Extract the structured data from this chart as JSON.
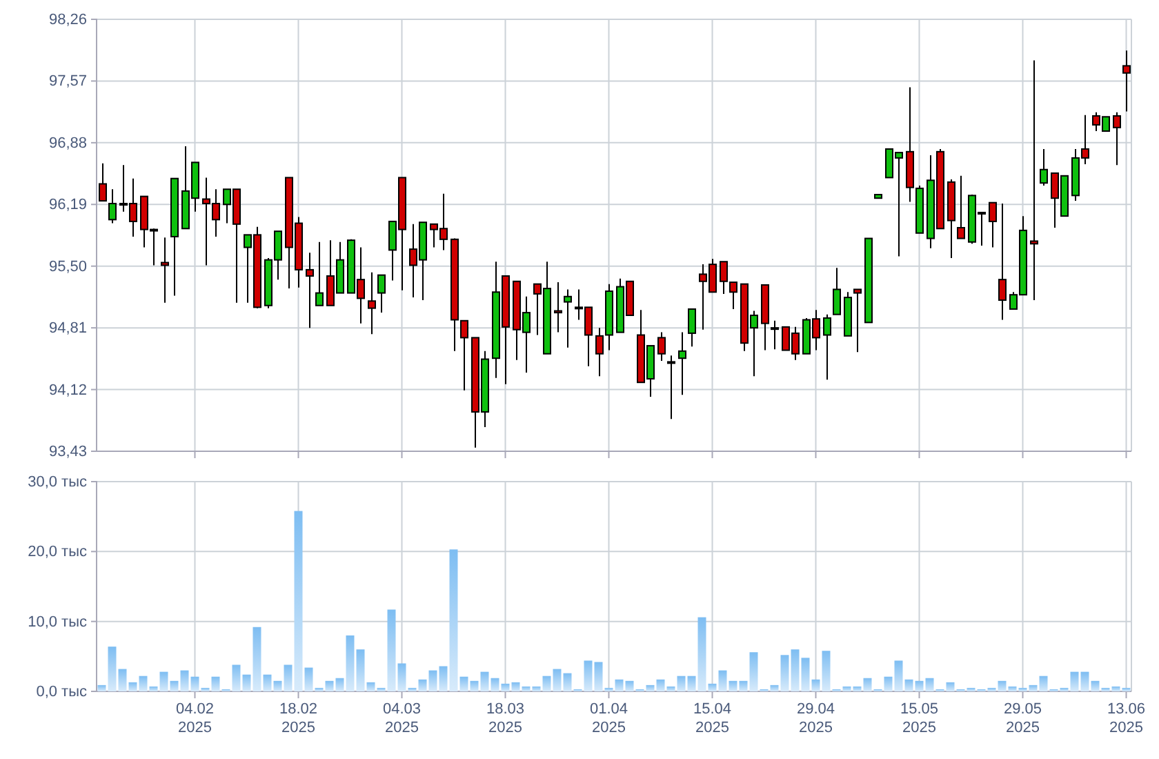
{
  "chart_data": [
    {
      "type": "candlestick",
      "tick_labels": "y",
      "grid": true,
      "categories": [
        null,
        null,
        null,
        null,
        null,
        null,
        null,
        null,
        null,
        null,
        null,
        null,
        null,
        null,
        null,
        null,
        null,
        null,
        null,
        null,
        null,
        null,
        null,
        null,
        null,
        null,
        null,
        null,
        null,
        null,
        null,
        null,
        null,
        null,
        null,
        null,
        null,
        null,
        null,
        null,
        null,
        null,
        null,
        null,
        null,
        null,
        null,
        null,
        null,
        null,
        null,
        null,
        null,
        null,
        null,
        null,
        null,
        null,
        null,
        null,
        null,
        null,
        null,
        null,
        null,
        null,
        null,
        null,
        null,
        null,
        null,
        null,
        null,
        null,
        null,
        null,
        null,
        null,
        null,
        null,
        null,
        null,
        null,
        null,
        null,
        null,
        null,
        null,
        null,
        null,
        null,
        null,
        null,
        null,
        null,
        null,
        null,
        null,
        null,
        null
      ],
      "ylim": [
        93.43,
        98.26
      ],
      "yticks": [
        {
          "value": 93.43,
          "label": "93,43"
        },
        {
          "value": 94.12,
          "label": "94,12"
        },
        {
          "value": 94.81,
          "label": "94,81"
        },
        {
          "value": 95.5,
          "label": "95,50"
        },
        {
          "value": 96.19,
          "label": "96,19"
        },
        {
          "value": 96.88,
          "label": "96,88"
        },
        {
          "value": 97.57,
          "label": "97,57"
        },
        {
          "value": 98.26,
          "label": "98,26"
        }
      ],
      "ohlc": [
        [
          96.42,
          96.65,
          96.23,
          96.23
        ],
        [
          96.02,
          96.36,
          95.98,
          96.2
        ],
        [
          96.2,
          96.63,
          96.11,
          96.2
        ],
        [
          96.2,
          96.48,
          95.83,
          96.0
        ],
        [
          96.28,
          96.28,
          95.71,
          95.91
        ],
        [
          95.91,
          95.92,
          95.51,
          95.91
        ],
        [
          95.54,
          95.82,
          95.09,
          95.51
        ],
        [
          95.83,
          96.48,
          95.17,
          96.48
        ],
        [
          95.92,
          96.84,
          95.92,
          96.34
        ],
        [
          96.26,
          96.66,
          96.11,
          96.66
        ],
        [
          96.25,
          96.49,
          95.51,
          96.2
        ],
        [
          96.2,
          96.36,
          95.83,
          96.02
        ],
        [
          96.19,
          96.36,
          95.98,
          96.36
        ],
        [
          96.36,
          96.36,
          95.09,
          95.97
        ],
        [
          95.71,
          95.85,
          95.09,
          95.85
        ],
        [
          95.85,
          95.94,
          95.03,
          95.04
        ],
        [
          95.06,
          95.59,
          95.03,
          95.57
        ],
        [
          95.57,
          95.89,
          95.35,
          95.89
        ],
        [
          96.49,
          96.49,
          95.25,
          95.71
        ],
        [
          95.98,
          96.05,
          95.26,
          95.46
        ],
        [
          95.46,
          95.65,
          94.81,
          95.39
        ],
        [
          95.06,
          95.77,
          95.06,
          95.2
        ],
        [
          95.39,
          95.79,
          95.06,
          95.06
        ],
        [
          95.2,
          95.77,
          95.2,
          95.57
        ],
        [
          95.2,
          95.8,
          95.2,
          95.79
        ],
        [
          95.35,
          95.71,
          94.86,
          95.14
        ],
        [
          95.11,
          95.43,
          94.74,
          95.03
        ],
        [
          95.2,
          95.4,
          94.98,
          95.4
        ],
        [
          95.68,
          96.0,
          95.34,
          96.0
        ],
        [
          96.49,
          96.49,
          95.23,
          95.91
        ],
        [
          95.69,
          95.97,
          95.15,
          95.51
        ],
        [
          95.57,
          95.99,
          95.12,
          95.99
        ],
        [
          95.97,
          95.97,
          95.71,
          95.91
        ],
        [
          95.92,
          96.31,
          95.68,
          95.8
        ],
        [
          95.8,
          95.81,
          94.55,
          94.9
        ],
        [
          94.89,
          94.89,
          94.11,
          94.7
        ],
        [
          94.7,
          94.7,
          93.47,
          93.87
        ],
        [
          93.87,
          94.55,
          93.7,
          94.46
        ],
        [
          94.47,
          95.55,
          94.25,
          95.21
        ],
        [
          95.39,
          95.39,
          94.18,
          94.82
        ],
        [
          95.33,
          95.33,
          94.45,
          94.79
        ],
        [
          94.76,
          95.16,
          94.31,
          94.98
        ],
        [
          95.3,
          95.3,
          94.73,
          95.19
        ],
        [
          94.52,
          95.55,
          94.52,
          95.25
        ],
        [
          95.0,
          95.32,
          94.76,
          94.98
        ],
        [
          95.1,
          95.24,
          94.59,
          95.16
        ],
        [
          95.04,
          95.24,
          94.9,
          95.03
        ],
        [
          95.04,
          95.04,
          94.38,
          94.73
        ],
        [
          94.72,
          94.81,
          94.27,
          94.52
        ],
        [
          94.73,
          95.3,
          94.56,
          95.22
        ],
        [
          94.76,
          95.36,
          94.76,
          95.27
        ],
        [
          95.33,
          95.33,
          94.95,
          94.95
        ],
        [
          94.73,
          95.01,
          94.2,
          94.2
        ],
        [
          94.24,
          94.61,
          94.04,
          94.61
        ],
        [
          94.7,
          94.76,
          94.44,
          94.52
        ],
        [
          94.43,
          94.5,
          93.79,
          94.43
        ],
        [
          94.47,
          94.76,
          94.06,
          94.55
        ],
        [
          94.75,
          95.02,
          94.6,
          95.02
        ],
        [
          95.41,
          95.52,
          94.79,
          95.33
        ],
        [
          95.52,
          95.58,
          95.21,
          95.21
        ],
        [
          95.55,
          95.55,
          95.19,
          95.33
        ],
        [
          95.32,
          95.32,
          95.02,
          95.21
        ],
        [
          95.3,
          95.3,
          94.55,
          94.64
        ],
        [
          94.81,
          95.0,
          94.27,
          94.95
        ],
        [
          95.29,
          95.29,
          94.56,
          94.86
        ],
        [
          94.81,
          94.89,
          94.57,
          94.81
        ],
        [
          94.82,
          94.82,
          94.56,
          94.56
        ],
        [
          94.75,
          94.82,
          94.45,
          94.52
        ],
        [
          94.52,
          94.92,
          94.52,
          94.9
        ],
        [
          94.91,
          95.01,
          94.56,
          94.7
        ],
        [
          94.73,
          94.96,
          94.23,
          94.92
        ],
        [
          94.96,
          95.48,
          94.96,
          95.24
        ],
        [
          94.72,
          95.21,
          94.72,
          95.15
        ],
        [
          95.24,
          95.24,
          94.54,
          95.2
        ],
        [
          94.87,
          95.81,
          94.87,
          95.81
        ],
        [
          96.26,
          96.3,
          96.26,
          96.3
        ],
        [
          96.49,
          96.81,
          96.49,
          96.81
        ],
        [
          96.71,
          96.77,
          95.61,
          96.77
        ],
        [
          96.78,
          97.5,
          96.22,
          96.38
        ],
        [
          95.87,
          96.4,
          95.87,
          96.37
        ],
        [
          95.81,
          96.74,
          95.7,
          96.46
        ],
        [
          96.78,
          96.81,
          95.92,
          95.92
        ],
        [
          96.44,
          96.47,
          95.59,
          96.01
        ],
        [
          95.93,
          96.51,
          95.81,
          95.81
        ],
        [
          95.77,
          96.3,
          95.75,
          96.29
        ],
        [
          96.1,
          96.1,
          95.73,
          96.1
        ],
        [
          96.21,
          96.21,
          95.71,
          96.0
        ],
        [
          95.35,
          96.2,
          94.9,
          95.12
        ],
        [
          95.02,
          95.21,
          95.02,
          95.18
        ],
        [
          95.18,
          96.06,
          95.18,
          95.9
        ],
        [
          95.78,
          97.8,
          95.12,
          95.75
        ],
        [
          96.43,
          96.81,
          96.4,
          96.58
        ],
        [
          96.54,
          96.54,
          95.93,
          96.26
        ],
        [
          96.06,
          96.51,
          96.06,
          96.51
        ],
        [
          96.29,
          96.81,
          96.23,
          96.71
        ],
        [
          96.81,
          97.19,
          96.64,
          96.71
        ],
        [
          97.18,
          97.22,
          97.01,
          97.08
        ],
        [
          97.01,
          97.17,
          97.01,
          97.17
        ],
        [
          97.18,
          97.22,
          96.63,
          97.05
        ],
        [
          97.74,
          97.91,
          97.23,
          97.66
        ]
      ]
    },
    {
      "type": "bar",
      "grid": true,
      "color": "#7dbdf2",
      "categories": [
        null,
        null,
        null,
        null,
        null,
        null,
        null,
        null,
        null,
        "04.02 2025",
        null,
        null,
        null,
        null,
        null,
        null,
        null,
        null,
        null,
        "18.02 2025",
        null,
        null,
        null,
        null,
        null,
        null,
        null,
        null,
        null,
        "04.03 2025",
        null,
        null,
        null,
        null,
        null,
        null,
        null,
        null,
        null,
        "18.03 2025",
        null,
        null,
        null,
        null,
        null,
        null,
        null,
        null,
        null,
        "01.04 2025",
        null,
        null,
        null,
        null,
        null,
        null,
        null,
        null,
        null,
        "15.04 2025",
        null,
        null,
        null,
        null,
        null,
        null,
        null,
        null,
        null,
        "29.04 2025",
        null,
        null,
        null,
        null,
        null,
        null,
        null,
        null,
        null,
        "15.05 2025",
        null,
        null,
        null,
        null,
        null,
        null,
        null,
        null,
        null,
        "29.05 2025",
        null,
        null,
        null,
        null,
        null,
        null,
        null,
        null,
        null,
        "13.06 2025"
      ],
      "ylim": [
        0,
        30
      ],
      "yticks": [
        {
          "value": 0,
          "label": "0,0 тыс"
        },
        {
          "value": 10,
          "label": "10,0 тыс"
        },
        {
          "value": 20,
          "label": "20,0 тыс"
        },
        {
          "value": 30,
          "label": "30,0 тыс"
        }
      ],
      "values": [
        0.9,
        6.4,
        3.2,
        1.3,
        2.2,
        0.7,
        2.8,
        1.5,
        3.0,
        2.1,
        0.5,
        2.1,
        0.3,
        3.8,
        2.4,
        9.2,
        2.4,
        1.5,
        3.8,
        25.8,
        3.4,
        0.5,
        1.5,
        1.9,
        8.0,
        6.0,
        1.3,
        0.5,
        11.7,
        4.0,
        0.5,
        1.7,
        3.0,
        3.6,
        20.3,
        2.1,
        1.5,
        2.8,
        1.9,
        1.1,
        1.3,
        0.7,
        0.7,
        2.2,
        3.2,
        2.6,
        0.3,
        4.4,
        4.2,
        0.5,
        1.7,
        1.5,
        0.3,
        0.9,
        1.7,
        0.7,
        2.2,
        2.2,
        10.6,
        1.1,
        3.0,
        1.5,
        1.5,
        5.6,
        0.3,
        0.9,
        5.2,
        6.0,
        4.8,
        1.7,
        5.8,
        0.3,
        0.7,
        0.7,
        1.9,
        0.3,
        2.1,
        4.4,
        1.7,
        1.5,
        1.9,
        0.3,
        1.3,
        0.3,
        0.5,
        0.3,
        0.5,
        1.5,
        0.7,
        0.5,
        0.9,
        2.2,
        0.3,
        0.5,
        2.8,
        2.8,
        1.5,
        0.5,
        0.7,
        0.5
      ]
    }
  ]
}
